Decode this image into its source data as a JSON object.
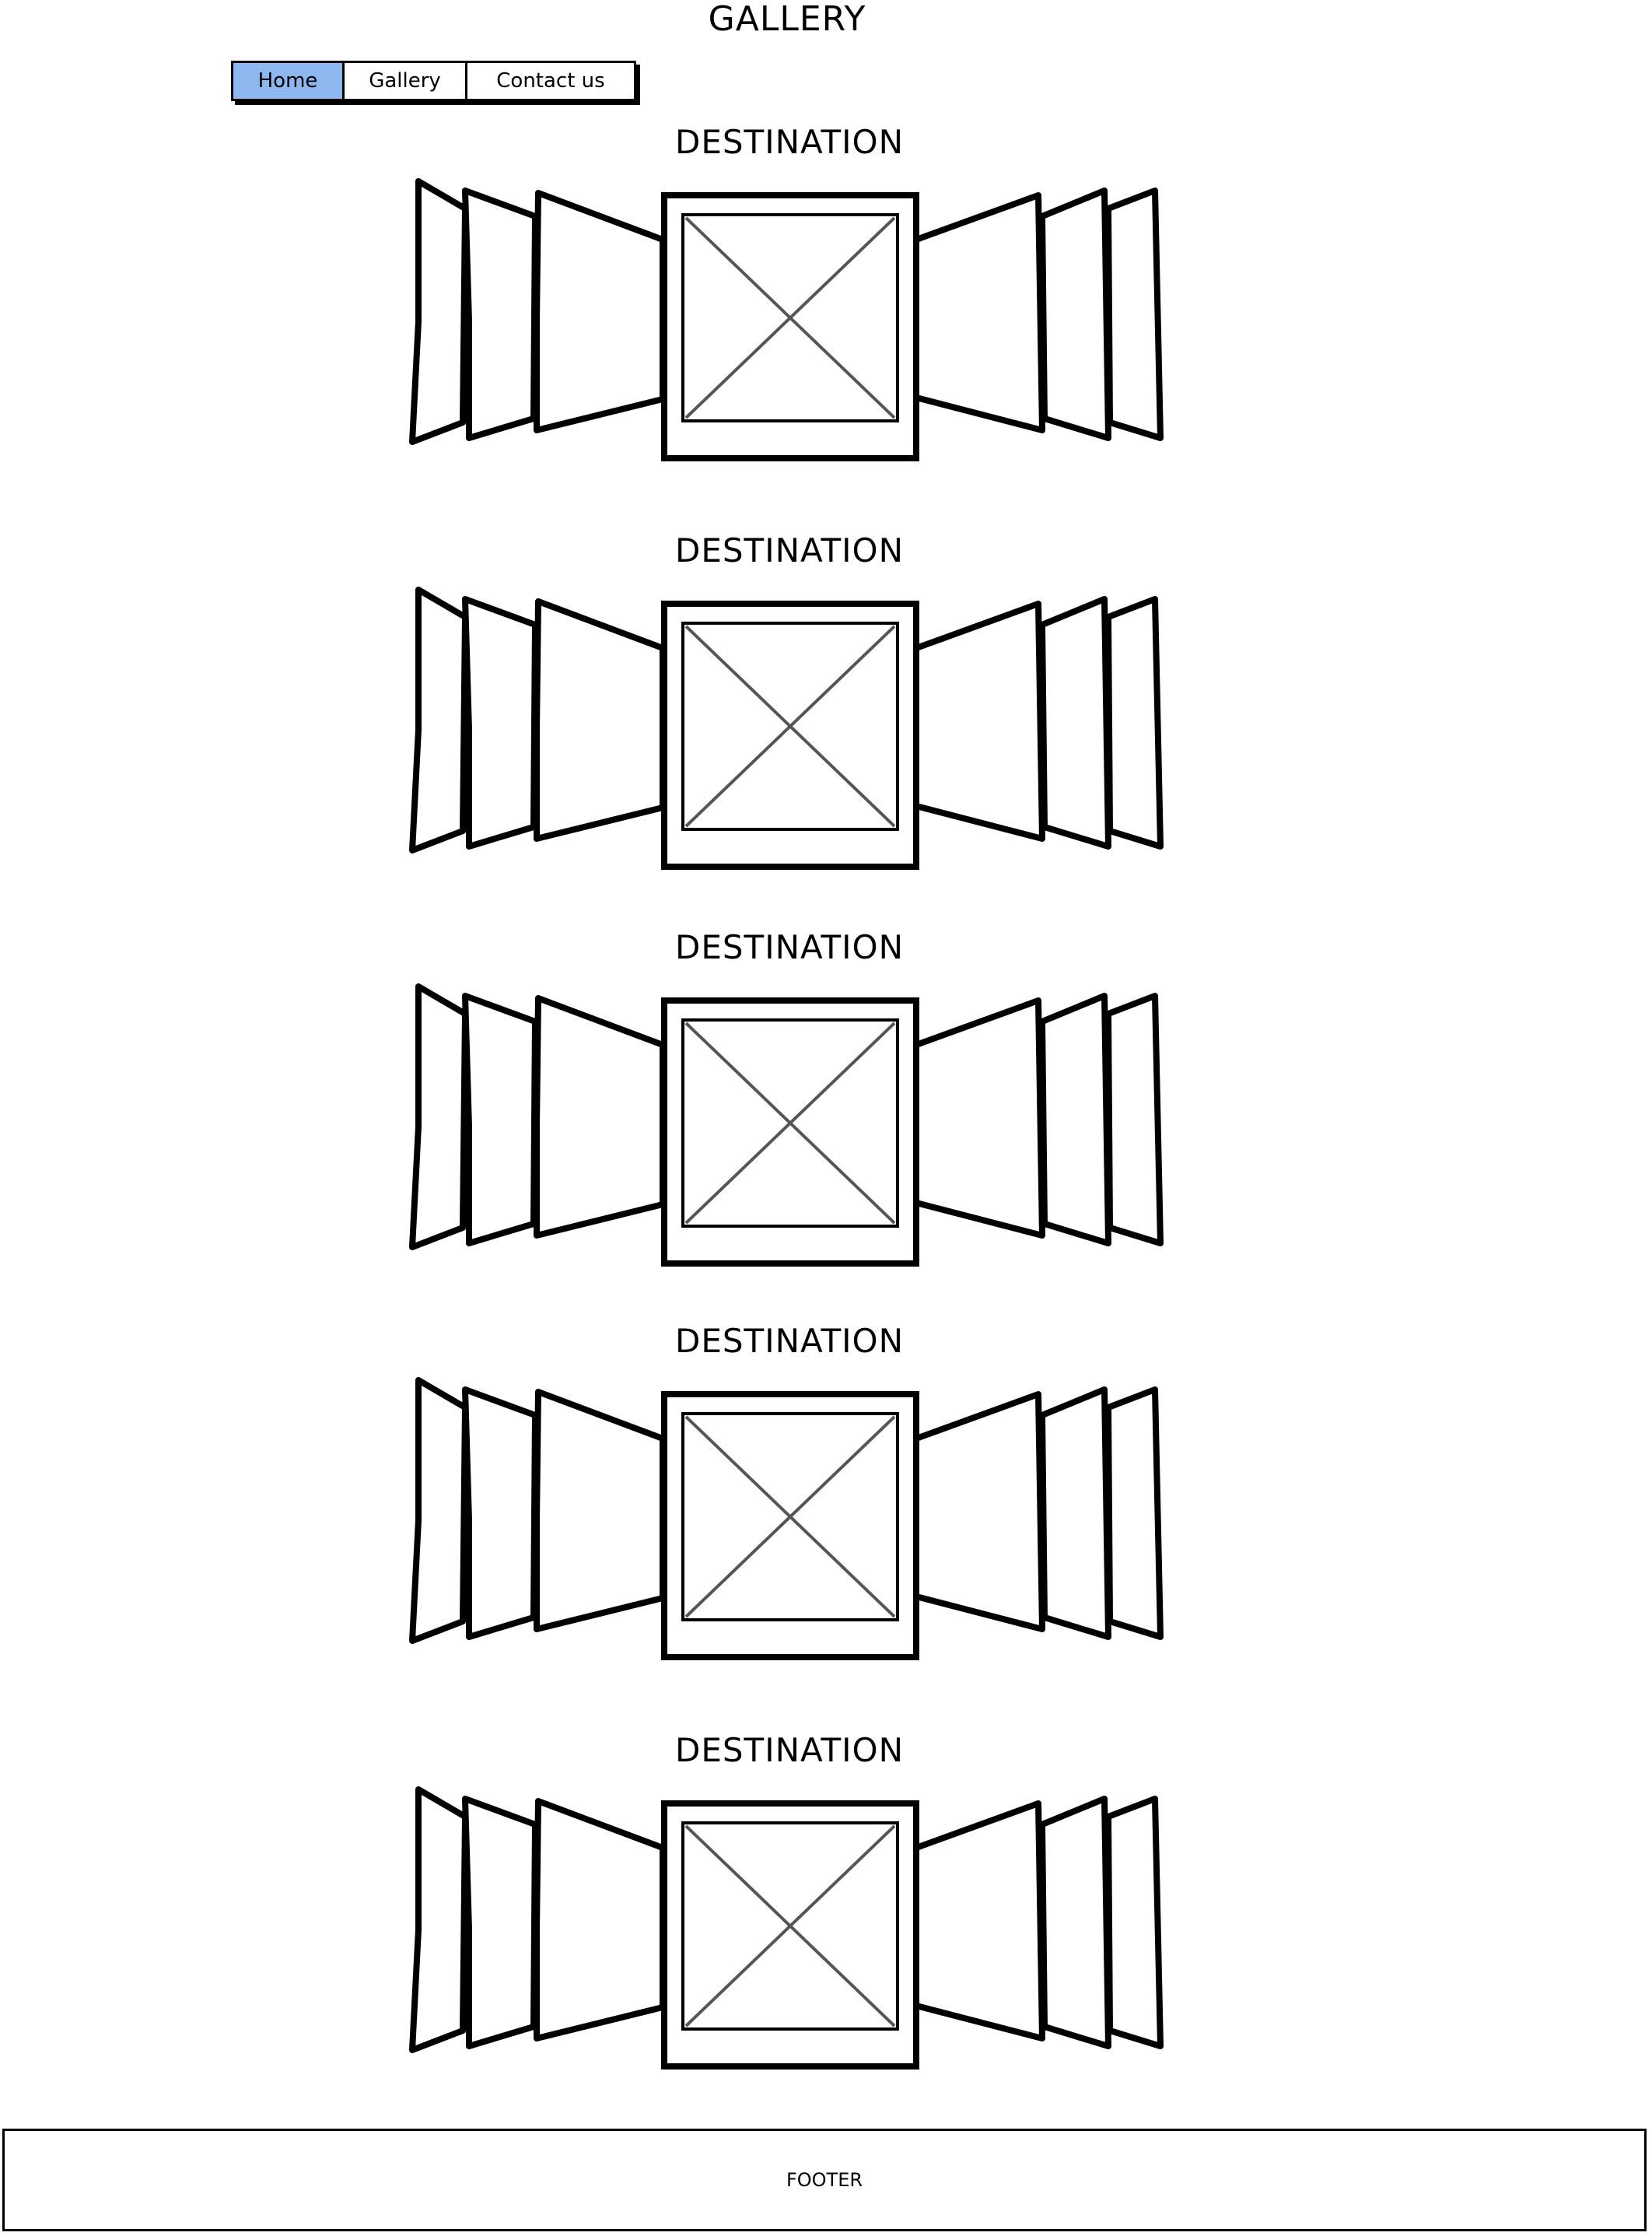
{
  "page": {
    "title": "GALLERY"
  },
  "nav": {
    "items": [
      {
        "label": "Home",
        "active": true
      },
      {
        "label": "Gallery",
        "active": false
      },
      {
        "label": "Contact us",
        "active": false
      }
    ],
    "active_color": "#8db7ef"
  },
  "gallery": {
    "sections": [
      {
        "title": "DESTINATION"
      },
      {
        "title": "DESTINATION"
      },
      {
        "title": "DESTINATION"
      },
      {
        "title": "DESTINATION"
      },
      {
        "title": "DESTINATION"
      }
    ]
  },
  "footer": {
    "label": "FOOTER"
  }
}
